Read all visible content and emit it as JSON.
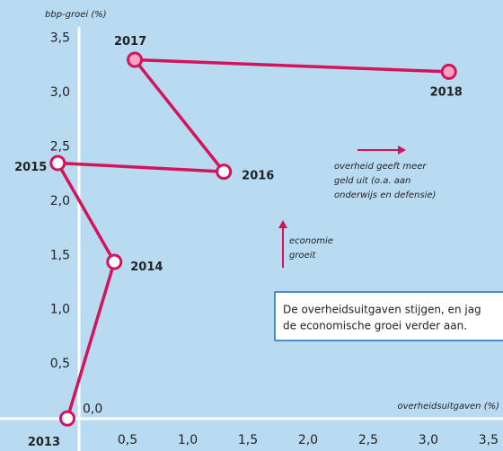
{
  "chart_data": {
    "type": "line",
    "y_label": "bbp-groei (%)",
    "x_label": "overheidsuitgaven (%)",
    "x": [
      0.0,
      0.39,
      -0.08,
      1.3,
      0.56,
      3.17
    ],
    "labels": [
      "2013",
      "2014",
      "2015",
      "2016",
      "2017",
      "2018"
    ],
    "series": [
      {
        "color": "#d4145a",
        "values": [
          0.0,
          1.44,
          2.35,
          2.27,
          3.3,
          3.19
        ]
      }
    ],
    "marker_fills": [
      "#ffffff",
      "#ffffff",
      "#ffffff",
      "#ffffff",
      "#f4a3c3",
      "#f4a3c3"
    ],
    "xlim": [
      -0.56,
      3.62
    ],
    "ylim": [
      -0.3,
      3.85
    ],
    "xticks": [
      {
        "value": 0.5,
        "label": "0,5"
      },
      {
        "value": 1.0,
        "label": "1,0"
      },
      {
        "value": 1.5,
        "label": "1,5"
      },
      {
        "value": 2.0,
        "label": "2,0"
      },
      {
        "value": 2.5,
        "label": "2,5"
      },
      {
        "value": 3.0,
        "label": "3,0"
      },
      {
        "value": 3.5,
        "label": "3,5"
      }
    ],
    "yticks": [
      {
        "value": 0,
        "label": "0,0"
      },
      {
        "value": 0.5,
        "label": "0,5"
      },
      {
        "value": 1.0,
        "label": "1,0"
      },
      {
        "value": 1.5,
        "label": "1,5"
      },
      {
        "value": 2.0,
        "label": "2,0"
      },
      {
        "value": 2.5,
        "label": "2,5"
      },
      {
        "value": 3.0,
        "label": "3,0"
      },
      {
        "value": 3.5,
        "label": "3,5"
      }
    ],
    "annotation_spending": [
      "overheid geeft meer",
      "geld uit (o.a. aan",
      "onderwijs en defensie)"
    ],
    "annotation_growth": [
      "economie",
      "groeit"
    ],
    "box_text": [
      "De overheidsuitgaven stijgen, en jag",
      "de economische groei verder aan."
    ]
  }
}
